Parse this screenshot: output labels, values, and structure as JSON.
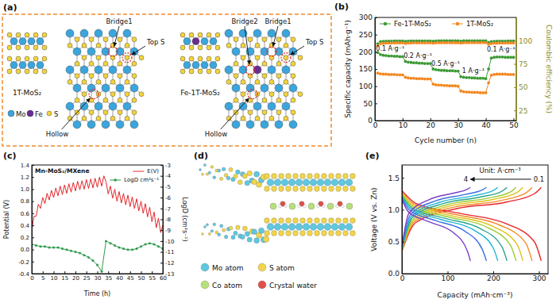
{
  "chart_data": [
    {
      "panel": "(b)",
      "type": "line",
      "xlabel": "Cycle number (n)",
      "ylabel": "Specific capacity (mAh·g⁻¹)",
      "y2label": "Coulombic efficiency (%)",
      "x": [
        1,
        2,
        3,
        4,
        5,
        6,
        7,
        8,
        9,
        10,
        11,
        12,
        13,
        14,
        15,
        16,
        17,
        18,
        19,
        20,
        21,
        22,
        23,
        24,
        25,
        26,
        27,
        28,
        29,
        30,
        31,
        32,
        33,
        34,
        35,
        36,
        37,
        38,
        39,
        40,
        41,
        42,
        43,
        44,
        45,
        46,
        47,
        48,
        49,
        50
      ],
      "xlim": [
        0,
        51
      ],
      "xticks": [
        0,
        10,
        20,
        30,
        40,
        50
      ],
      "ylim": [
        0,
        300
      ],
      "yticks": [
        0,
        50,
        100,
        150,
        200,
        250,
        300
      ],
      "y2lim": [
        14,
        125
      ],
      "y2ticks": [
        25,
        50,
        75,
        100
      ],
      "legend": "upper left",
      "series": [
        {
          "name": "Fe-1T-MoS₂",
          "color": "#3d9b35",
          "marker": "circle",
          "line_style": "solid",
          "values": [
            198,
            192,
            190,
            189,
            188,
            188,
            187,
            187,
            186,
            186,
            172,
            170,
            169,
            168,
            168,
            167,
            167,
            166,
            166,
            166,
            150,
            148,
            147,
            146,
            146,
            145,
            145,
            145,
            144,
            144,
            128,
            126,
            125,
            125,
            124,
            124,
            123,
            123,
            123,
            122,
            150,
            182,
            184,
            185,
            185,
            185,
            184,
            184,
            184,
            184
          ]
        },
        {
          "name": "1T-MoS₂",
          "color": "#f3871f",
          "marker": "circle",
          "line_style": "solid",
          "values": [
            138,
            136,
            135,
            135,
            134,
            134,
            134,
            133,
            133,
            133,
            126,
            124,
            123,
            123,
            122,
            122,
            122,
            121,
            121,
            121,
            106,
            104,
            103,
            103,
            102,
            102,
            101,
            101,
            101,
            100,
            86,
            84,
            83,
            83,
            82,
            82,
            82,
            81,
            81,
            81,
            110,
            132,
            134,
            135,
            135,
            135,
            135,
            134,
            134,
            134
          ]
        },
        {
          "type": "scatter",
          "axis": "y2",
          "color": "#3d9b35",
          "marker": "circle",
          "values": [
            96.8,
            99.1,
            99.3,
            99.4,
            99.5,
            99.5,
            99.6,
            99.6,
            99.6,
            99.6,
            99.2,
            99.5,
            99.6,
            99.6,
            99.7,
            99.7,
            99.7,
            99.7,
            99.7,
            99.7,
            99.4,
            99.7,
            99.8,
            99.8,
            99.8,
            99.8,
            99.8,
            99.8,
            99.8,
            99.8,
            99.5,
            99.8,
            99.9,
            99.9,
            99.9,
            99.9,
            99.9,
            99.9,
            99.9,
            99.9,
            98.2,
            99.0,
            99.3,
            99.4,
            99.5,
            99.5,
            99.5,
            99.6,
            99.6,
            99.6
          ]
        },
        {
          "type": "scatter",
          "axis": "y2",
          "color": "#f3871f",
          "marker": "circle",
          "values": [
            94.5,
            96.8,
            97.1,
            97.3,
            97.4,
            97.4,
            97.5,
            97.5,
            97.5,
            97.5,
            97.0,
            97.4,
            97.5,
            97.6,
            97.6,
            97.6,
            97.6,
            97.6,
            97.6,
            97.6,
            97.2,
            97.6,
            97.7,
            97.7,
            97.7,
            97.7,
            97.7,
            97.7,
            97.7,
            97.7,
            97.4,
            97.7,
            97.8,
            97.8,
            97.8,
            97.8,
            97.8,
            97.8,
            97.8,
            97.8,
            96.0,
            96.9,
            97.2,
            97.3,
            97.4,
            97.4,
            97.4,
            97.5,
            97.5,
            97.5
          ]
        }
      ],
      "annotations": [
        {
          "text": "0.1 A·g⁻¹",
          "x": 5.5,
          "y": 202
        },
        {
          "text": "0.2 A·g⁻¹",
          "x": 15.5,
          "y": 182
        },
        {
          "text": "0.5 A·g⁻¹",
          "x": 25.5,
          "y": 160
        },
        {
          "text": "1 A·g⁻¹",
          "x": 35.5,
          "y": 138
        },
        {
          "text": "0.1 A·g⁻¹",
          "x": 45.5,
          "y": 200
        }
      ]
    },
    {
      "panel": "(c)",
      "type": "line",
      "title": "Mn-MoS₂/MXene",
      "xlabel": "Time (h)",
      "ylabel": "Potential (V)",
      "y2label": "LogD (cm²s⁻¹)",
      "xlim": [
        0,
        60
      ],
      "xticks": [
        0,
        5,
        10,
        15,
        20,
        25,
        30,
        35,
        40,
        45,
        50,
        55,
        60
      ],
      "ylim": [
        -0.4,
        1.4
      ],
      "yticks": [
        -0.4,
        -0.2,
        {
          "value": 0,
          "label": "0.0"
        },
        0.2,
        0.4,
        0.6,
        0.8,
        {
          "value": 1,
          "label": "1.0"
        },
        1.2,
        1.4
      ],
      "y2lim": [
        -13,
        -3
      ],
      "y2ticks": [
        -13,
        -12,
        -11,
        -10,
        -9,
        -8,
        -7,
        -6,
        -5,
        -4,
        -3
      ],
      "legend": "upper right",
      "series": [
        {
          "name": "E(V)",
          "color": "#e3262b",
          "line_style": "solid",
          "x": [
            0,
            1,
            2,
            3,
            4,
            5,
            6,
            7,
            8,
            9,
            10,
            11,
            12,
            13,
            14,
            15,
            16,
            17,
            18,
            19,
            20,
            21,
            22,
            23,
            24,
            25,
            26,
            27,
            28,
            29,
            30,
            31,
            32,
            33,
            34,
            35,
            36,
            37,
            38,
            39,
            40,
            41,
            42,
            43,
            44,
            45,
            46,
            47,
            48,
            49,
            50,
            51,
            52,
            53,
            54,
            55,
            56,
            57,
            58,
            59,
            60
          ],
          "values": [
            0.32,
            0.55,
            0.55,
            0.75,
            0.68,
            0.86,
            0.76,
            0.93,
            0.82,
            0.98,
            0.86,
            1.02,
            0.89,
            1.05,
            0.91,
            1.07,
            0.93,
            1.09,
            0.95,
            1.11,
            0.97,
            1.13,
            0.99,
            1.14,
            1.0,
            1.16,
            1.01,
            1.17,
            1.02,
            1.18,
            1.03,
            1.2,
            1.05,
            1.22,
            1.12,
            0.92,
            1.05,
            0.85,
            1.0,
            0.8,
            0.96,
            0.77,
            0.93,
            0.74,
            0.9,
            0.71,
            0.87,
            0.68,
            0.84,
            0.64,
            0.8,
            0.6,
            0.76,
            0.54,
            0.7,
            0.46,
            0.62,
            0.36,
            0.52,
            0.28,
            0.4
          ]
        },
        {
          "name": "LogD cm²s⁻¹",
          "color": "#2f9a4b",
          "marker": "circle",
          "line_style": "solid",
          "axis": "y2",
          "x": [
            0,
            2,
            4,
            6,
            8,
            10,
            12,
            14,
            16,
            18,
            20,
            22,
            24,
            26,
            28,
            30,
            32,
            34,
            36,
            38,
            40,
            42,
            44,
            46,
            48,
            50,
            52,
            54,
            56,
            58,
            60
          ],
          "values": [
            -10.3,
            -10.4,
            -10.5,
            -10.5,
            -10.6,
            -10.6,
            -10.6,
            -10.7,
            -10.8,
            -10.9,
            -11.0,
            -11.1,
            -11.3,
            -11.5,
            -11.8,
            -12.2,
            -12.8,
            -10.0,
            -10.2,
            -10.4,
            -10.6,
            -10.7,
            -10.8,
            -10.8,
            -10.7,
            -10.5,
            -10.3,
            -10.2,
            -10.3,
            -10.5,
            -10.7
          ]
        }
      ]
    },
    {
      "panel": "(e)",
      "type": "line",
      "xlabel": "Capacity (mAh·cm⁻³)",
      "ylabel": "Voltage (V vs. Zn)",
      "xlim": [
        0,
        320
      ],
      "xticks": [
        0,
        100,
        200,
        300
      ],
      "ylim": [
        0,
        1.7
      ],
      "yticks": [
        {
          "value": 0,
          "label": "0.0"
        },
        0.5,
        {
          "value": 1,
          "label": "1.0"
        },
        1.5
      ],
      "series": [
        {
          "color": "#e8242a",
          "x": [
            0,
            30.5,
            122,
            229,
            290,
            305
          ],
          "values": [
            1.3,
            1.1,
            0.95,
            0.78,
            0.5,
            0.2
          ]
        },
        {
          "color": "#e8242a",
          "x": [
            0,
            30.5,
            122,
            229,
            290,
            305
          ],
          "values": [
            0.35,
            0.8,
            1.02,
            1.12,
            1.25,
            1.35
          ]
        },
        {
          "color": "#f28c28",
          "x": [
            0,
            28.5,
            114,
            214,
            271,
            285
          ],
          "values": [
            1.28,
            1.08,
            0.93,
            0.76,
            0.48,
            0.2
          ]
        },
        {
          "color": "#f28c28",
          "x": [
            0,
            28.5,
            114,
            214,
            271,
            285
          ],
          "values": [
            0.36,
            0.82,
            1.04,
            1.14,
            1.26,
            1.35
          ]
        },
        {
          "color": "#e0c119",
          "x": [
            0,
            26.5,
            106,
            199,
            252,
            265
          ],
          "values": [
            1.26,
            1.06,
            0.91,
            0.74,
            0.46,
            0.2
          ]
        },
        {
          "color": "#e0c119",
          "x": [
            0,
            26.5,
            106,
            199,
            252,
            265
          ],
          "values": [
            0.37,
            0.84,
            1.06,
            1.16,
            1.27,
            1.35
          ]
        },
        {
          "color": "#9acd32",
          "x": [
            0,
            25,
            100,
            188,
            238,
            250
          ],
          "values": [
            1.24,
            1.04,
            0.89,
            0.72,
            0.44,
            0.2
          ]
        },
        {
          "color": "#9acd32",
          "x": [
            0,
            25,
            100,
            188,
            238,
            250
          ],
          "values": [
            0.38,
            0.86,
            1.08,
            1.18,
            1.28,
            1.35
          ]
        },
        {
          "color": "#2ca58d",
          "x": [
            0,
            23,
            92,
            173,
            219,
            230
          ],
          "values": [
            1.22,
            1.02,
            0.87,
            0.7,
            0.42,
            0.2
          ]
        },
        {
          "color": "#2ca58d",
          "x": [
            0,
            23,
            92,
            173,
            219,
            230
          ],
          "values": [
            0.39,
            0.88,
            1.1,
            1.2,
            1.29,
            1.35
          ]
        },
        {
          "color": "#1fb5d6",
          "x": [
            0,
            21,
            84,
            158,
            200,
            210
          ],
          "values": [
            1.2,
            1.0,
            0.85,
            0.68,
            0.4,
            0.2
          ]
        },
        {
          "color": "#1fb5d6",
          "x": [
            0,
            21,
            84,
            158,
            200,
            210
          ],
          "values": [
            0.4,
            0.9,
            1.12,
            1.22,
            1.3,
            1.35
          ]
        },
        {
          "color": "#3d6fe0",
          "x": [
            0,
            18.5,
            74,
            139,
            176,
            185
          ],
          "values": [
            1.18,
            0.98,
            0.83,
            0.66,
            0.38,
            0.2
          ]
        },
        {
          "color": "#3d6fe0",
          "x": [
            0,
            18.5,
            74,
            139,
            176,
            185
          ],
          "values": [
            0.41,
            0.92,
            1.14,
            1.24,
            1.31,
            1.35
          ]
        },
        {
          "color": "#7b3fc4",
          "x": [
            0,
            15,
            60,
            113,
            143,
            150
          ],
          "values": [
            1.16,
            0.96,
            0.81,
            0.64,
            0.36,
            0.2
          ]
        },
        {
          "color": "#7b3fc4",
          "x": [
            0,
            15,
            60,
            113,
            143,
            150
          ],
          "values": [
            0.42,
            0.94,
            1.16,
            1.26,
            1.32,
            1.35
          ]
        }
      ],
      "annotations": [
        {
          "text": "Unit: A·cm⁻³",
          "x": 215,
          "y": 1.57
        },
        {
          "text": "4",
          "x": 140,
          "y": 1.44
        },
        {
          "text": "0.1",
          "x": 300,
          "y": 1.44
        }
      ]
    }
  ],
  "diagram_a": {
    "panel": "(a)",
    "structures": [
      {
        "label": "1T-MoS₂",
        "sites": [
          "Bridge1",
          "Top S",
          "Hollow"
        ]
      },
      {
        "label": "Fe-1T-MoS₂",
        "sites": [
          "Bridge2",
          "Bridge1",
          "Top S",
          "Hollow"
        ]
      }
    ],
    "legend_items": [
      "Mo",
      "Fe",
      "S"
    ]
  },
  "diagram_d": {
    "panel": "(d)",
    "legend_items": [
      "Mo atom",
      "S atom",
      "Co atom",
      "Crystal water"
    ]
  }
}
